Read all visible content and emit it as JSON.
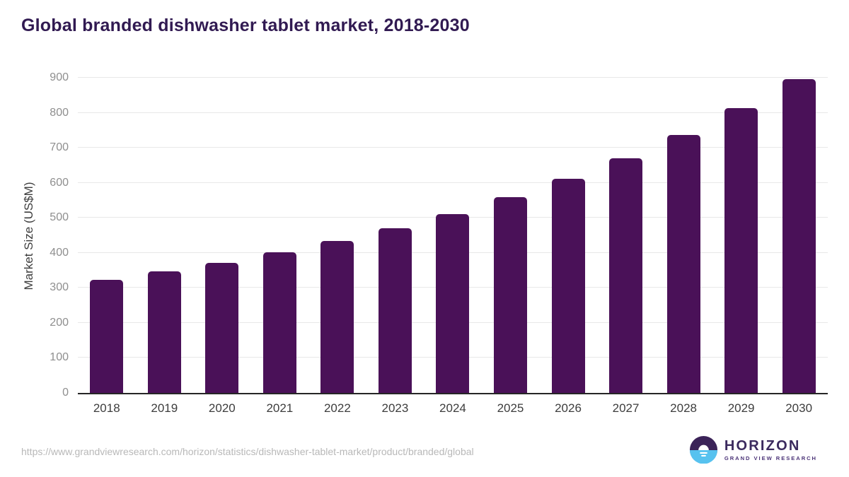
{
  "title": "Global branded dishwasher tablet market, 2018-2030",
  "chart_data": {
    "type": "bar",
    "title": "Global branded dishwasher tablet market, 2018-2030",
    "categories": [
      "2018",
      "2019",
      "2020",
      "2021",
      "2022",
      "2023",
      "2024",
      "2025",
      "2026",
      "2027",
      "2028",
      "2029",
      "2030"
    ],
    "values": [
      323,
      347,
      372,
      401,
      433,
      470,
      511,
      560,
      612,
      670,
      736,
      813,
      897
    ],
    "xlabel": "",
    "ylabel": "Market Size (US$M)",
    "ylim": [
      0,
      900
    ],
    "yticks": [
      0,
      100,
      200,
      300,
      400,
      500,
      600,
      700,
      800,
      900
    ],
    "grid": true,
    "legend_position": "none",
    "bar_color": "#4a1158"
  },
  "footer": {
    "source_url": "https://www.grandviewresearch.com/horizon/statistics/dishwasher-tablet-market/product/branded/global",
    "logo": {
      "name": "HORIZON",
      "subtitle": "GRAND VIEW RESEARCH"
    }
  },
  "colors": {
    "bar": "#4a1158",
    "title_text": "#311a52",
    "gridline": "#e8e8e8",
    "axis_line": "#262626",
    "y_tick_text": "#8f8f8f",
    "x_tick_text": "#3d3d3d",
    "url_text": "#b8b8b8",
    "logo_purple": "#3b2358",
    "logo_blue": "#57c2ef"
  }
}
